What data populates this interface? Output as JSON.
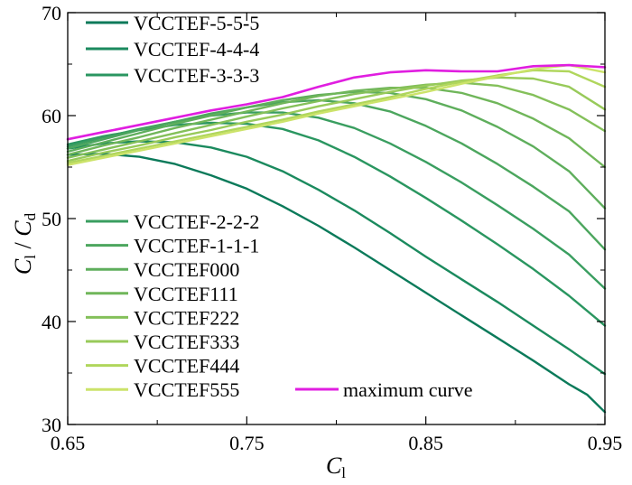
{
  "chart_data": {
    "type": "line",
    "title": "",
    "xlabel_main": "C",
    "xlabel_sub": "l",
    "ylabel_num_main": "C",
    "ylabel_num_sub": "l",
    "ylabel_sep": " / ",
    "ylabel_den_main": "C",
    "ylabel_den_sub": "d",
    "xlim": [
      0.65,
      0.95
    ],
    "ylim": [
      30,
      70
    ],
    "xticks": [
      0.65,
      0.75,
      0.85,
      0.95
    ],
    "xtick_labels": [
      "0.65",
      "0.75",
      "0.85",
      "0.95"
    ],
    "yticks": [
      30,
      40,
      50,
      60,
      70
    ],
    "ytick_labels": [
      "30",
      "40",
      "50",
      "60",
      "70"
    ],
    "x_minor_ticks": [
      0.7,
      0.8,
      0.9
    ],
    "y_minor_ticks": [
      35,
      45,
      55,
      65
    ],
    "grid": false,
    "legend_placement": "top-left and bottom-left",
    "series": [
      {
        "name": "VCCTEF-5-5-5",
        "color": "#0b7a5a",
        "x": [
          0.65,
          0.67,
          0.69,
          0.71,
          0.73,
          0.75,
          0.77,
          0.79,
          0.81,
          0.83,
          0.85,
          0.87,
          0.89,
          0.91,
          0.93,
          0.94,
          0.95
        ],
        "y": [
          56.2,
          56.3,
          56.0,
          55.3,
          54.2,
          52.9,
          51.2,
          49.3,
          47.2,
          45.0,
          42.8,
          40.6,
          38.4,
          36.2,
          33.9,
          32.9,
          31.2
        ]
      },
      {
        "name": "VCCTEF-4-4-4",
        "color": "#1b8a5e",
        "x": [
          0.65,
          0.67,
          0.69,
          0.71,
          0.73,
          0.75,
          0.77,
          0.79,
          0.81,
          0.83,
          0.85,
          0.87,
          0.89,
          0.91,
          0.93,
          0.95
        ],
        "y": [
          56.8,
          57.3,
          57.5,
          57.4,
          56.9,
          56.0,
          54.6,
          52.8,
          50.8,
          48.6,
          46.3,
          44.1,
          41.9,
          39.6,
          37.3,
          34.9
        ]
      },
      {
        "name": "VCCTEF-3-3-3",
        "color": "#2a9660",
        "x": [
          0.65,
          0.67,
          0.69,
          0.71,
          0.73,
          0.75,
          0.77,
          0.79,
          0.81,
          0.83,
          0.85,
          0.87,
          0.89,
          0.91,
          0.93,
          0.95
        ],
        "y": [
          57.2,
          58.0,
          58.6,
          59.1,
          59.3,
          59.2,
          58.7,
          57.6,
          56.0,
          54.1,
          52.0,
          49.8,
          47.5,
          45.1,
          42.5,
          39.6
        ]
      },
      {
        "name": "VCCTEF-2-2-2",
        "color": "#3a9e60",
        "x": [
          0.65,
          0.67,
          0.69,
          0.71,
          0.73,
          0.75,
          0.77,
          0.79,
          0.81,
          0.83,
          0.85,
          0.87,
          0.89,
          0.91,
          0.93,
          0.95
        ],
        "y": [
          57.0,
          57.9,
          58.7,
          59.4,
          60.0,
          60.3,
          60.3,
          59.8,
          58.8,
          57.3,
          55.5,
          53.5,
          51.3,
          49.0,
          46.5,
          43.2
        ]
      },
      {
        "name": "VCCTEF-1-1-1",
        "color": "#4ca65e",
        "x": [
          0.65,
          0.67,
          0.69,
          0.71,
          0.73,
          0.75,
          0.77,
          0.79,
          0.81,
          0.83,
          0.85,
          0.87,
          0.89,
          0.91,
          0.93,
          0.95
        ],
        "y": [
          56.8,
          57.7,
          58.6,
          59.4,
          60.2,
          60.8,
          61.3,
          61.5,
          61.2,
          60.4,
          59.0,
          57.3,
          55.3,
          53.1,
          50.7,
          47.0
        ]
      },
      {
        "name": "VCCTEF000",
        "color": "#5eae5c",
        "x": [
          0.65,
          0.67,
          0.69,
          0.71,
          0.73,
          0.75,
          0.77,
          0.79,
          0.81,
          0.83,
          0.85,
          0.87,
          0.89,
          0.91,
          0.93,
          0.95
        ],
        "y": [
          56.5,
          57.4,
          58.3,
          59.2,
          60.0,
          60.8,
          61.5,
          62.0,
          62.3,
          62.2,
          61.6,
          60.5,
          58.9,
          57.0,
          54.6,
          51.0
        ]
      },
      {
        "name": "VCCTEF111",
        "color": "#70b65a",
        "x": [
          0.65,
          0.67,
          0.69,
          0.71,
          0.73,
          0.75,
          0.77,
          0.79,
          0.81,
          0.83,
          0.85,
          0.87,
          0.89,
          0.91,
          0.93,
          0.95
        ],
        "y": [
          56.2,
          57.1,
          57.9,
          58.8,
          59.6,
          60.4,
          61.2,
          61.9,
          62.4,
          62.7,
          62.7,
          62.2,
          61.2,
          59.7,
          57.8,
          55.0
        ]
      },
      {
        "name": "VCCTEF222",
        "color": "#84c05a",
        "x": [
          0.65,
          0.67,
          0.69,
          0.71,
          0.73,
          0.75,
          0.77,
          0.79,
          0.81,
          0.83,
          0.85,
          0.87,
          0.89,
          0.91,
          0.93,
          0.95
        ],
        "y": [
          55.9,
          56.7,
          57.5,
          58.3,
          59.1,
          59.9,
          60.7,
          61.4,
          62.1,
          62.6,
          63.0,
          63.2,
          62.9,
          62.0,
          60.6,
          58.5
        ]
      },
      {
        "name": "VCCTEF333",
        "color": "#98ca5a",
        "x": [
          0.65,
          0.67,
          0.69,
          0.71,
          0.73,
          0.75,
          0.77,
          0.79,
          0.81,
          0.83,
          0.85,
          0.87,
          0.89,
          0.91,
          0.93,
          0.95
        ],
        "y": [
          55.6,
          56.4,
          57.1,
          57.9,
          58.6,
          59.4,
          60.1,
          60.9,
          61.6,
          62.3,
          62.9,
          63.4,
          63.7,
          63.6,
          62.8,
          60.6
        ]
      },
      {
        "name": "VCCTEF444",
        "color": "#b0d65c",
        "x": [
          0.65,
          0.67,
          0.69,
          0.71,
          0.73,
          0.75,
          0.77,
          0.79,
          0.81,
          0.83,
          0.85,
          0.87,
          0.89,
          0.91,
          0.93,
          0.95
        ],
        "y": [
          55.4,
          56.1,
          56.8,
          57.5,
          58.2,
          58.9,
          59.6,
          60.4,
          61.1,
          61.8,
          62.6,
          63.3,
          63.9,
          64.4,
          64.3,
          62.8
        ]
      },
      {
        "name": "VCCTEF555",
        "color": "#cce36a",
        "x": [
          0.65,
          0.67,
          0.69,
          0.71,
          0.73,
          0.75,
          0.77,
          0.79,
          0.81,
          0.83,
          0.85,
          0.87,
          0.89,
          0.91,
          0.93,
          0.95
        ],
        "y": [
          55.2,
          55.9,
          56.6,
          57.3,
          58.0,
          58.7,
          59.4,
          60.2,
          60.9,
          61.6,
          62.3,
          63.1,
          63.8,
          64.5,
          64.9,
          64.2
        ]
      },
      {
        "name": "maximum curve",
        "color": "#e01ee0",
        "x": [
          0.65,
          0.67,
          0.69,
          0.71,
          0.73,
          0.75,
          0.77,
          0.79,
          0.81,
          0.83,
          0.85,
          0.87,
          0.89,
          0.91,
          0.93,
          0.95
        ],
        "y": [
          57.7,
          58.4,
          59.1,
          59.8,
          60.5,
          61.1,
          61.8,
          62.8,
          63.7,
          64.2,
          64.4,
          64.3,
          64.3,
          64.8,
          64.9,
          64.7
        ]
      }
    ]
  }
}
